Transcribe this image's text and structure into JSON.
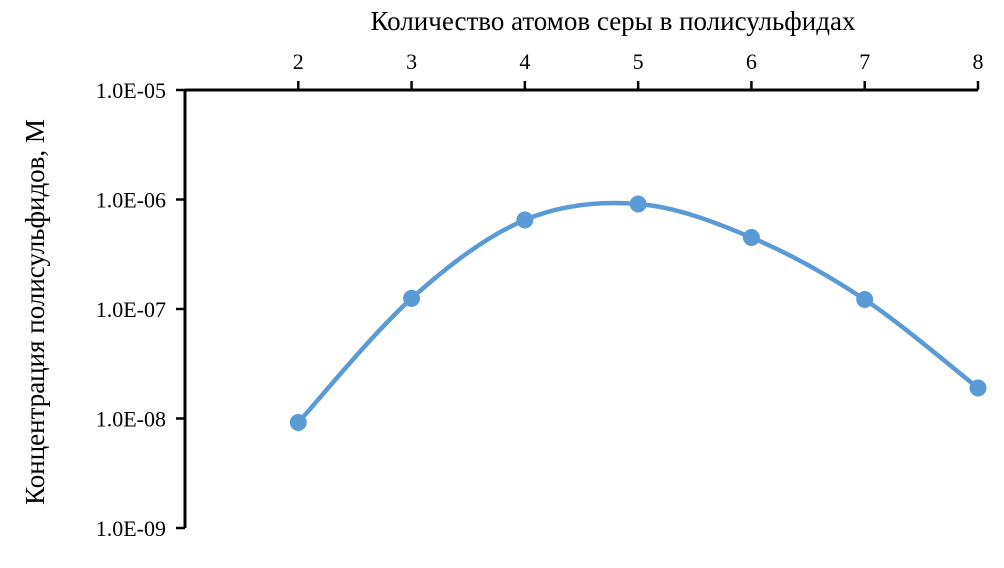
{
  "chart_data": {
    "type": "line",
    "title": "",
    "xlabel": "Количество атомов серы в полисульфидах",
    "ylabel": "Концентрация полисульфидов, М",
    "x_axis_position": "top",
    "y_scale": "log",
    "ylim": [
      1e-09,
      1e-05
    ],
    "xlim": [
      1,
      8
    ],
    "x_ticks": [
      "2",
      "3",
      "4",
      "5",
      "6",
      "7",
      "8"
    ],
    "y_ticks": [
      "1.0E-09",
      "1.0E-08",
      "1.0E-07",
      "1.0E-06",
      "1.0E-05"
    ],
    "grid": false,
    "smoothed": true,
    "series": [
      {
        "color": "#5B9BD5",
        "x": [
          2,
          3,
          4,
          5,
          6,
          7,
          8
        ],
        "y": [
          9.2e-09,
          1.25e-07,
          6.5e-07,
          9.1e-07,
          4.5e-07,
          1.22e-07,
          1.9e-08
        ]
      }
    ]
  }
}
